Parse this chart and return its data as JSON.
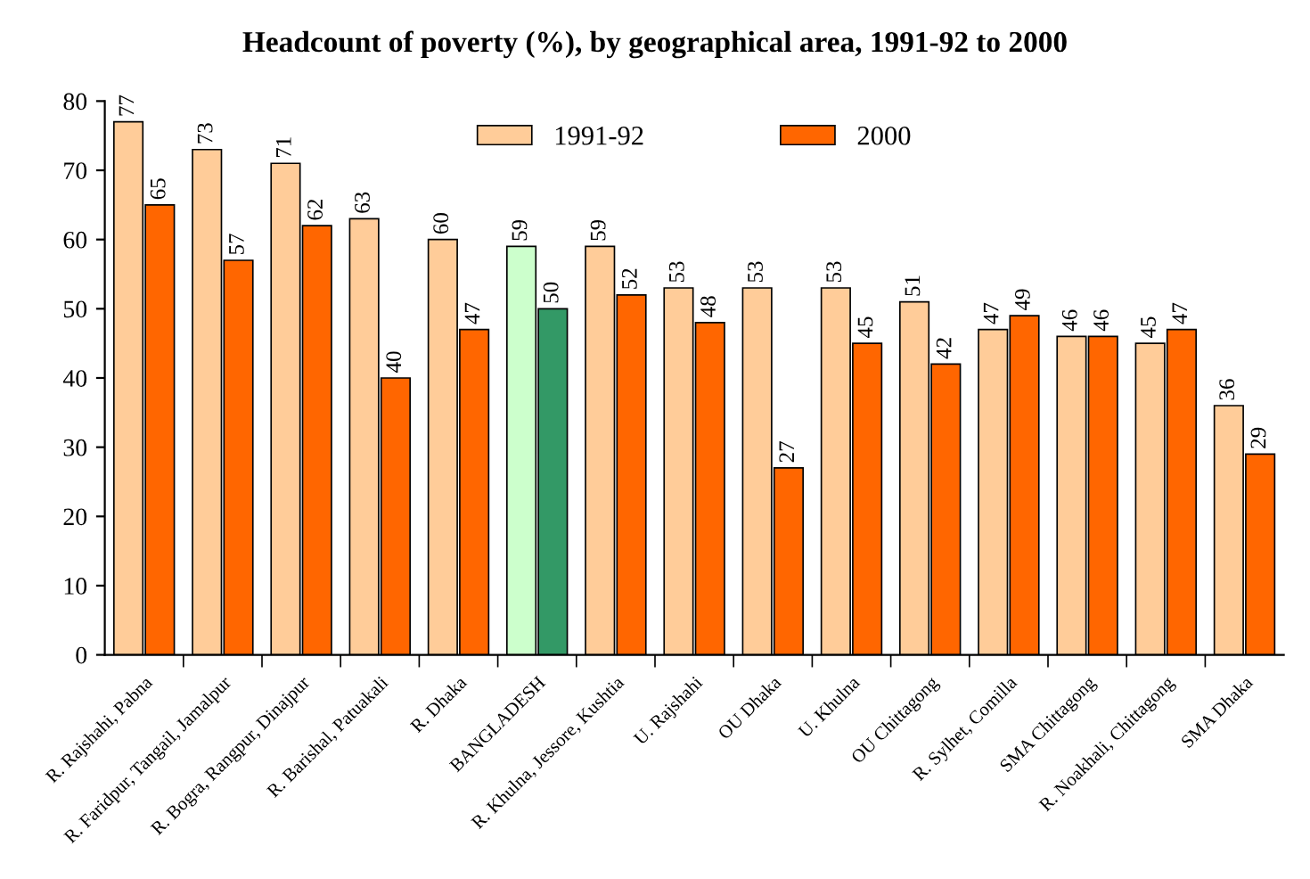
{
  "chart_data": {
    "type": "bar",
    "title": "Headcount of poverty (%), by geographical area, 1991-92 to 2000",
    "categories": [
      "R. Rajshahi, Pabna",
      "R. Faridpur, Tangail, Jamalpur",
      "R. Bogra, Rangpur, Dinajpur",
      "R. Barishal, Patuakali",
      "R. Dhaka",
      "BANGLADESH",
      "R. Khulna, Jessore, Kushtia",
      "U. Rajshahi",
      "OU Dhaka",
      "U. Khulna",
      "OU Chittagong",
      "R. Sylhet, Comilla",
      "SMA Chittagong",
      "R. Noakhali, Chittagong",
      "SMA Dhaka"
    ],
    "series": [
      {
        "name": "1991-92",
        "color": "#ffcc99",
        "colors": [
          "#ffcc99",
          "#ffcc99",
          "#ffcc99",
          "#ffcc99",
          "#ffcc99",
          "#ccffcc",
          "#ffcc99",
          "#ffcc99",
          "#ffcc99",
          "#ffcc99",
          "#ffcc99",
          "#ffcc99",
          "#ffcc99",
          "#ffcc99",
          "#ffcc99"
        ],
        "values": [
          77,
          73,
          71,
          63,
          60,
          59,
          59,
          53,
          53,
          53,
          51,
          47,
          46,
          45,
          36
        ]
      },
      {
        "name": "2000",
        "color": "#ff6600",
        "colors": [
          "#ff6600",
          "#ff6600",
          "#ff6600",
          "#ff6600",
          "#ff6600",
          "#339966",
          "#ff6600",
          "#ff6600",
          "#ff6600",
          "#ff6600",
          "#ff6600",
          "#ff6600",
          "#ff6600",
          "#ff6600",
          "#ff6600"
        ],
        "values": [
          65,
          57,
          62,
          40,
          47,
          50,
          52,
          48,
          27,
          45,
          42,
          49,
          46,
          47,
          29
        ]
      }
    ],
    "ylim": [
      0,
      80
    ],
    "yticks": [
      0,
      10,
      20,
      30,
      40,
      50,
      60,
      70,
      80
    ],
    "data_labels": true,
    "grid": false,
    "legend": "top"
  }
}
